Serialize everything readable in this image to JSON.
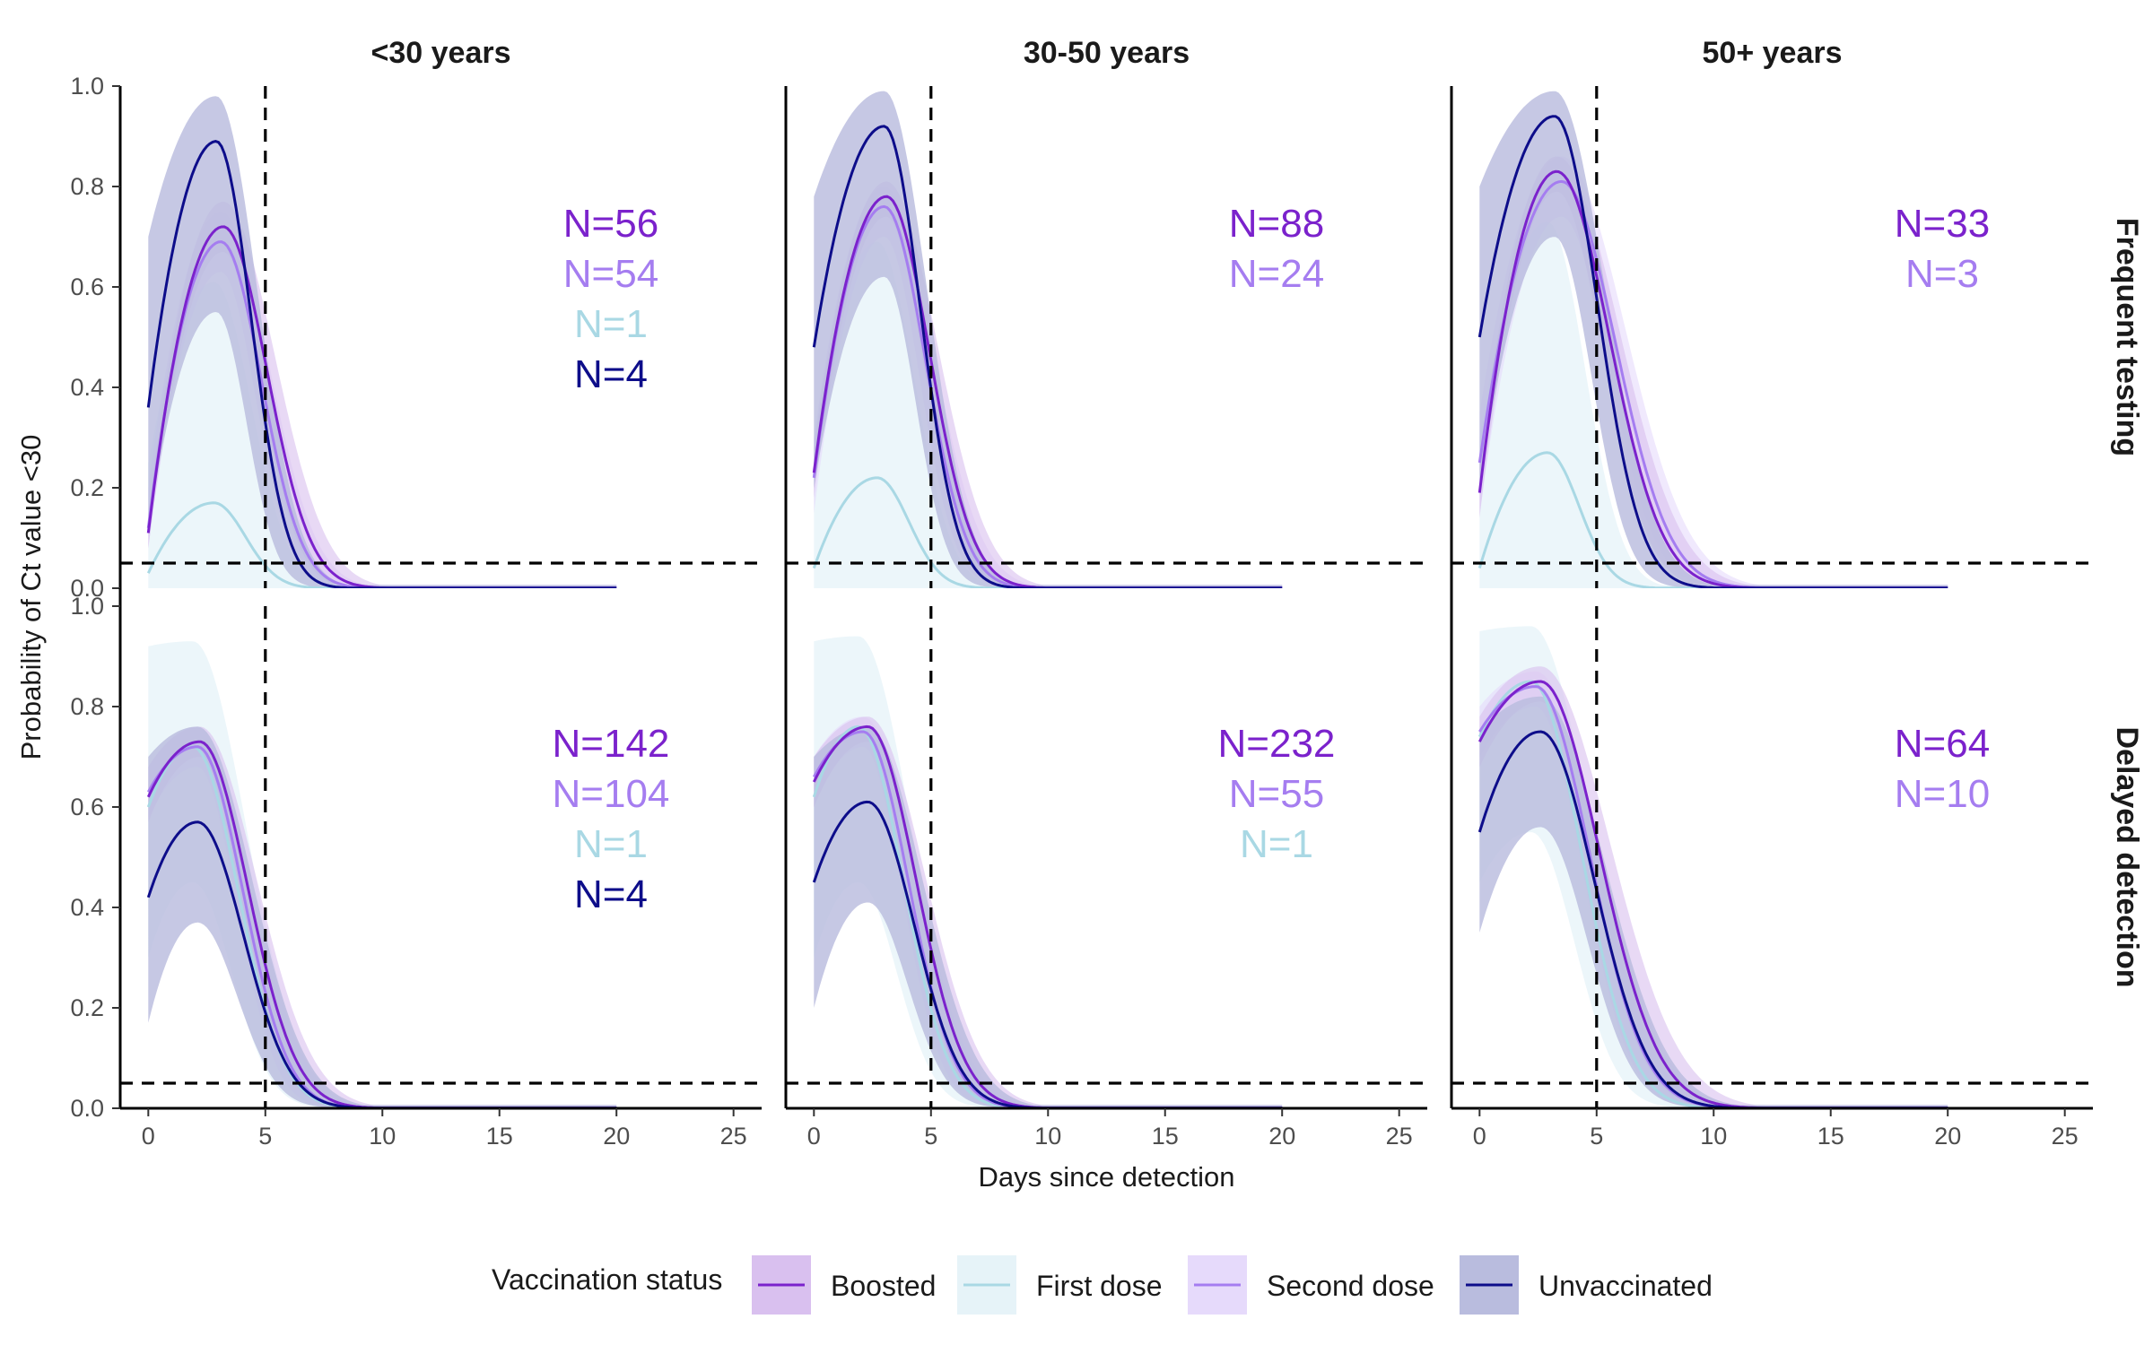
{
  "chart_data": {
    "type": "line",
    "facets": {
      "columns": [
        "<30 years",
        "30-50 years",
        "50+ years"
      ],
      "rows": [
        "Frequent testing",
        "Delayed detection"
      ]
    },
    "xlabel": "Days since detection",
    "ylabel": "Probability of Ct value <30",
    "xlim": [
      -1.2,
      26.2
    ],
    "ylim": [
      0,
      1.0
    ],
    "x_ticks": [
      0,
      5,
      10,
      15,
      20,
      25
    ],
    "y_ticks": [
      0.0,
      0.2,
      0.4,
      0.6,
      0.8,
      1.0
    ],
    "y_tick_labels": [
      "0.0",
      "0.2",
      "0.4",
      "0.6",
      "0.8",
      "1.0"
    ],
    "reference_lines": {
      "vertical_x": 5,
      "horizontal_y": 0.05
    },
    "legend": {
      "title": "Vaccination status",
      "position": "bottom",
      "entries": [
        {
          "name": "Boosted",
          "line_color": "#7b22cc",
          "fill_color": "#d9c0ef"
        },
        {
          "name": "First dose",
          "line_color": "#a9d8e4",
          "fill_color": "#e6f3f8"
        },
        {
          "name": "Second dose",
          "line_color": "#a57df0",
          "fill_color": "#e6dafb"
        },
        {
          "name": "Unvaccinated",
          "line_color": "#0d0d8a",
          "fill_color": "#b9bcde"
        }
      ]
    },
    "panels": [
      {
        "column": "<30 years",
        "row": "Frequent testing",
        "counts": [
          {
            "group": "Boosted",
            "text": "N=56"
          },
          {
            "group": "Second dose",
            "text": "N=54"
          },
          {
            "group": "First dose",
            "text": "N=1"
          },
          {
            "group": "Unvaccinated",
            "text": "N=4"
          }
        ],
        "series": [
          {
            "name": "First dose",
            "start": 0.03,
            "peak": 0.17,
            "peak_day": 2.8,
            "rate": 0.55,
            "upper_start": 0.25,
            "upper_peak": 0.61,
            "lower": 0.0,
            "x_end": 20
          },
          {
            "name": "Second dose",
            "start": 0.12,
            "peak": 0.69,
            "peak_day": 3.1,
            "rate": 0.34,
            "upper_start": 0.2,
            "upper_peak": 0.75,
            "lower_start": 0.08,
            "lower_peak": 0.63,
            "x_end": 20
          },
          {
            "name": "Boosted",
            "start": 0.11,
            "peak": 0.72,
            "peak_day": 3.2,
            "rate": 0.29,
            "upper_start": 0.15,
            "upper_peak": 0.77,
            "lower_start": 0.08,
            "lower_peak": 0.67,
            "x_end": 20
          },
          {
            "name": "Unvaccinated",
            "start": 0.36,
            "peak": 0.89,
            "peak_day": 2.9,
            "rate": 0.45,
            "upper_start": 0.7,
            "upper_peak": 0.98,
            "lower_start": 0.12,
            "lower_peak": 0.55,
            "x_end": 20
          }
        ]
      },
      {
        "column": "30-50 years",
        "row": "Frequent testing",
        "counts": [
          {
            "group": "Boosted",
            "text": "N=88"
          },
          {
            "group": "Second dose",
            "text": "N=24"
          }
        ],
        "series": [
          {
            "name": "First dose",
            "start": 0.04,
            "peak": 0.22,
            "peak_day": 2.7,
            "rate": 0.55,
            "upper_start": 0.3,
            "upper_peak": 0.69,
            "lower": 0.0,
            "x_end": 20
          },
          {
            "name": "Second dose",
            "start": 0.22,
            "peak": 0.76,
            "peak_day": 3.0,
            "rate": 0.33,
            "upper_start": 0.3,
            "upper_peak": 0.8,
            "lower_start": 0.15,
            "lower_peak": 0.7,
            "x_end": 20
          },
          {
            "name": "Boosted",
            "start": 0.23,
            "peak": 0.78,
            "peak_day": 3.1,
            "rate": 0.3,
            "upper_start": 0.28,
            "upper_peak": 0.81,
            "lower_start": 0.18,
            "lower_peak": 0.74,
            "x_end": 20
          },
          {
            "name": "Unvaccinated",
            "start": 0.48,
            "peak": 0.92,
            "peak_day": 3.0,
            "rate": 0.42,
            "upper_start": 0.78,
            "upper_peak": 0.99,
            "lower_start": 0.2,
            "lower_peak": 0.62,
            "x_end": 20
          }
        ]
      },
      {
        "column": "50+ years",
        "row": "Frequent testing",
        "counts": [
          {
            "group": "Boosted",
            "text": "N=33"
          },
          {
            "group": "Second dose",
            "text": "N=3"
          }
        ],
        "series": [
          {
            "name": "First dose",
            "start": 0.04,
            "peak": 0.27,
            "peak_day": 2.9,
            "rate": 0.55,
            "upper_start": 0.3,
            "upper_peak": 0.73,
            "lower": 0.0,
            "x_end": 20
          },
          {
            "name": "Second dose",
            "start": 0.25,
            "peak": 0.81,
            "peak_day": 3.5,
            "rate": 0.19,
            "upper_start": 0.35,
            "upper_peak": 0.86,
            "lower_start": 0.15,
            "lower_peak": 0.74,
            "x_end": 20
          },
          {
            "name": "Boosted",
            "start": 0.19,
            "peak": 0.83,
            "peak_day": 3.3,
            "rate": 0.2,
            "upper_start": 0.25,
            "upper_peak": 0.86,
            "lower_start": 0.14,
            "lower_peak": 0.79,
            "x_end": 20
          },
          {
            "name": "Unvaccinated",
            "start": 0.5,
            "peak": 0.94,
            "peak_day": 3.2,
            "rate": 0.3,
            "upper_start": 0.8,
            "upper_peak": 0.99,
            "lower_start": 0.2,
            "lower_peak": 0.7,
            "x_end": 20
          }
        ]
      },
      {
        "column": "<30 years",
        "row": "Delayed detection",
        "counts": [
          {
            "group": "Boosted",
            "text": "N=142"
          },
          {
            "group": "Second dose",
            "text": "N=104"
          },
          {
            "group": "First dose",
            "text": "N=1"
          },
          {
            "group": "Unvaccinated",
            "text": "N=4"
          }
        ],
        "series": [
          {
            "name": "First dose",
            "start": 0.6,
            "peak": 0.72,
            "peak_day": 1.9,
            "rate": 0.27,
            "upper_start": 0.92,
            "upper_peak": 0.93,
            "lower_start": 0.3,
            "lower_peak": 0.45,
            "x_end": 20
          },
          {
            "name": "Second dose",
            "start": 0.63,
            "peak": 0.72,
            "peak_day": 2.1,
            "rate": 0.27,
            "upper_start": 0.68,
            "upper_peak": 0.76,
            "lower_start": 0.58,
            "lower_peak": 0.68,
            "x_end": 20
          },
          {
            "name": "Boosted",
            "start": 0.62,
            "peak": 0.73,
            "peak_day": 2.2,
            "rate": 0.24,
            "upper_start": 0.68,
            "upper_peak": 0.76,
            "lower_start": 0.57,
            "lower_peak": 0.7,
            "x_end": 20
          },
          {
            "name": "Unvaccinated",
            "start": 0.42,
            "peak": 0.57,
            "peak_day": 2.1,
            "rate": 0.26,
            "upper_start": 0.7,
            "upper_peak": 0.76,
            "lower_start": 0.17,
            "lower_peak": 0.37,
            "x_end": 20
          }
        ]
      },
      {
        "column": "30-50 years",
        "row": "Delayed detection",
        "counts": [
          {
            "group": "Boosted",
            "text": "N=232"
          },
          {
            "group": "Second dose",
            "text": "N=55"
          },
          {
            "group": "First dose",
            "text": "N=1"
          }
        ],
        "series": [
          {
            "name": "First dose",
            "start": 0.62,
            "peak": 0.76,
            "peak_day": 1.9,
            "rate": 0.28,
            "upper_start": 0.93,
            "upper_peak": 0.94,
            "lower_start": 0.3,
            "lower_peak": 0.45,
            "x_end": 20
          },
          {
            "name": "Second dose",
            "start": 0.66,
            "peak": 0.75,
            "peak_day": 2.1,
            "rate": 0.27,
            "upper_start": 0.7,
            "upper_peak": 0.78,
            "lower_start": 0.6,
            "lower_peak": 0.72,
            "x_end": 20
          },
          {
            "name": "Boosted",
            "start": 0.65,
            "peak": 0.76,
            "peak_day": 2.3,
            "rate": 0.24,
            "upper_start": 0.7,
            "upper_peak": 0.78,
            "lower_start": 0.6,
            "lower_peak": 0.73,
            "x_end": 20
          },
          {
            "name": "Unvaccinated",
            "start": 0.45,
            "peak": 0.61,
            "peak_day": 2.3,
            "rate": 0.26,
            "upper_start": 0.7,
            "upper_peak": 0.76,
            "lower_start": 0.2,
            "lower_peak": 0.41,
            "x_end": 20
          }
        ]
      },
      {
        "column": "50+ years",
        "row": "Delayed detection",
        "counts": [
          {
            "group": "Boosted",
            "text": "N=64"
          },
          {
            "group": "Second dose",
            "text": "N=10"
          }
        ],
        "series": [
          {
            "name": "First dose",
            "start": 0.74,
            "peak": 0.85,
            "peak_day": 2.2,
            "rate": 0.22,
            "upper_start": 0.95,
            "upper_peak": 0.96,
            "lower_start": 0.45,
            "lower_peak": 0.55,
            "x_end": 20
          },
          {
            "name": "Second dose",
            "start": 0.75,
            "peak": 0.84,
            "peak_day": 2.4,
            "rate": 0.19,
            "upper_start": 0.8,
            "upper_peak": 0.87,
            "lower_start": 0.7,
            "lower_peak": 0.8,
            "x_end": 20
          },
          {
            "name": "Boosted",
            "start": 0.73,
            "peak": 0.85,
            "peak_day": 2.6,
            "rate": 0.16,
            "upper_start": 0.78,
            "upper_peak": 0.88,
            "lower_start": 0.68,
            "lower_peak": 0.81,
            "x_end": 20
          },
          {
            "name": "Unvaccinated",
            "start": 0.55,
            "peak": 0.75,
            "peak_day": 2.6,
            "rate": 0.19,
            "upper_start": 0.75,
            "upper_peak": 0.82,
            "lower_start": 0.35,
            "lower_peak": 0.56,
            "x_end": 20
          }
        ]
      }
    ]
  }
}
